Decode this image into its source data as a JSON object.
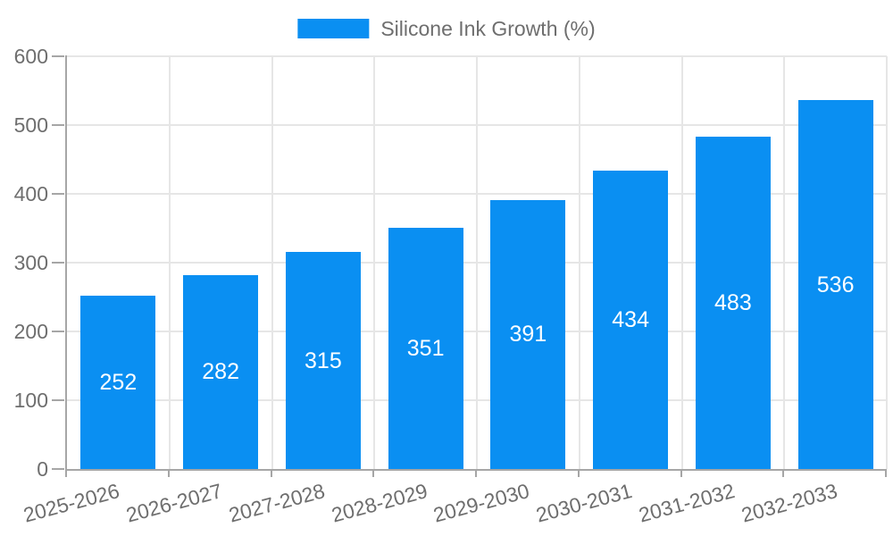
{
  "legend": {
    "label": "Silicone Ink Growth (%)"
  },
  "chart_data": {
    "type": "bar",
    "title": "",
    "categories": [
      "2025-2026",
      "2026-2027",
      "2027-2028",
      "2028-2029",
      "2029-2030",
      "2030-2031",
      "2031-2032",
      "2032-2033"
    ],
    "series": [
      {
        "name": "Silicone Ink Growth (%)",
        "values": [
          252,
          282,
          315,
          351,
          391,
          434,
          483,
          536
        ]
      }
    ],
    "xlabel": "",
    "ylabel": "",
    "ylim": [
      0,
      600
    ],
    "yticks": [
      0,
      100,
      200,
      300,
      400,
      500,
      600
    ],
    "grid": true,
    "legend_position": "top-center",
    "value_labels": "inside-center"
  },
  "colors": {
    "bar": "#0a8ff2",
    "grid": "#e6e6e6",
    "axis": "#a6a6a6",
    "tick_text": "#6e6e6e",
    "legend_text": "#6e6e6e",
    "value_label_text": "#ffffff",
    "background": "#ffffff"
  }
}
